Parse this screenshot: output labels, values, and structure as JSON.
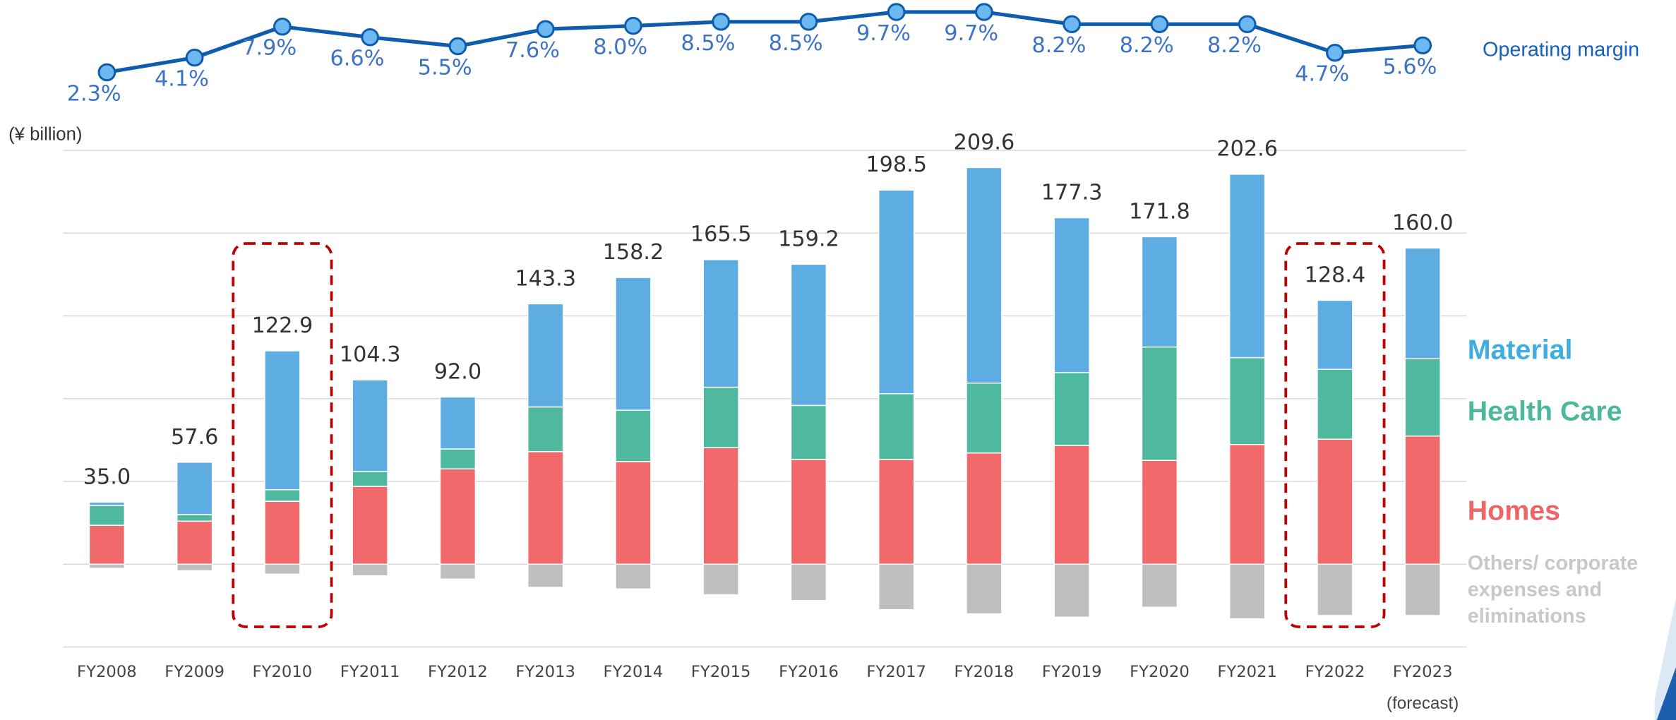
{
  "chart_data": {
    "type": "bar",
    "stacked": true,
    "y_label": "(¥ billion)",
    "categories": [
      "FY2008",
      "FY2009",
      "FY2010",
      "FY2011",
      "FY2012",
      "FY2013",
      "FY2014",
      "FY2015",
      "FY2016",
      "FY2017",
      "FY2018",
      "FY2019",
      "FY2020",
      "FY2021",
      "FY2022",
      "FY2023"
    ],
    "annotation": "(forecast)",
    "ylim": [
      -50,
      250
    ],
    "yticks": [
      -50,
      0,
      50,
      100,
      150,
      200,
      250
    ],
    "grid": true,
    "series": [
      {
        "name": "Others/ corporate expenses and eliminations",
        "color": "#bfbfbf",
        "legend_color": "#c8c8c8",
        "values": [
          -2.5,
          -4,
          -6,
          -7,
          -9,
          -14,
          -15,
          -18.5,
          -22,
          -27.5,
          -30,
          -32,
          -26,
          -33,
          -31,
          -31
        ]
      },
      {
        "name": "Homes",
        "color": "#f2696b",
        "legend_color": "#ee6568",
        "values": [
          23.5,
          26,
          38,
          47,
          57.6,
          68,
          62,
          70.4,
          63.3,
          63.3,
          67.2,
          71.7,
          62.7,
          72.3,
          75.5,
          77.4
        ]
      },
      {
        "name": "Health Care",
        "color": "#4fb9a0",
        "legend_color": "#4db89e",
        "values": [
          12,
          4,
          7,
          9,
          12,
          27,
          31,
          36.5,
          32.6,
          39.7,
          42.2,
          44.1,
          68.5,
          52.5,
          42.2,
          46.7
        ]
      },
      {
        "name": "Material",
        "color": "#5eade2",
        "legend_color": "#3eaee0",
        "values": [
          2,
          31.6,
          83.9,
          55.3,
          31.4,
          62.3,
          80.2,
          77.1,
          85.3,
          123,
          130.2,
          93.5,
          66.6,
          110.8,
          41.7,
          66.9
        ]
      }
    ],
    "total_labels": [
      "35.0",
      "57.6",
      "122.9",
      "104.3",
      "92.0",
      "143.3",
      "158.2",
      "165.5",
      "159.2",
      "198.5",
      "209.6",
      "177.3",
      "171.8",
      "202.6",
      "128.4",
      "160.0"
    ],
    "line": {
      "type": "line",
      "name": "Operating margin",
      "axis": "y2",
      "color": "#0e5cae",
      "marker_color": "#6cb8f0",
      "values": [
        2.3,
        4.1,
        7.9,
        6.6,
        5.5,
        7.6,
        8.0,
        8.5,
        8.5,
        9.7,
        9.7,
        8.2,
        8.2,
        8.2,
        4.7,
        5.6
      ],
      "value_labels": [
        "2.3%",
        "4.1%",
        "7.9%",
        "6.6%",
        "5.5%",
        "7.6%",
        "8.0%",
        "8.5%",
        "8.5%",
        "9.7%",
        "9.7%",
        "8.2%",
        "8.2%",
        "8.2%",
        "4.7%",
        "5.6%"
      ]
    },
    "y2lim": [
      0,
      10
    ]
  }
}
